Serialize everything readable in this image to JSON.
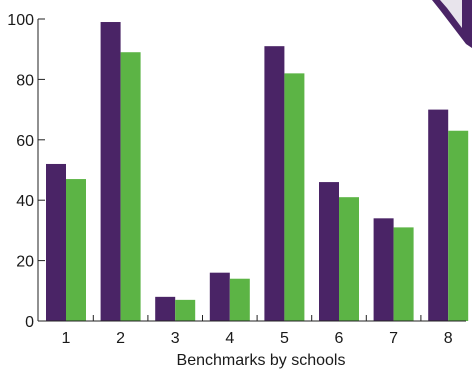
{
  "chart_data": {
    "type": "bar",
    "xlabel": "Benchmarks by schools",
    "ylabel": "",
    "ylim": [
      0,
      100
    ],
    "yticks": [
      0,
      20,
      40,
      60,
      80,
      100
    ],
    "categories": [
      "1",
      "2",
      "3",
      "4",
      "5",
      "6",
      "7",
      "8"
    ],
    "series": [
      {
        "values": [
          52,
          99,
          8,
          16,
          91,
          46,
          34,
          70
        ],
        "color": "#4a2466"
      },
      {
        "values": [
          47,
          89,
          7,
          14,
          82,
          41,
          31,
          63
        ],
        "color": "#5cb445"
      }
    ],
    "grid": false,
    "legend": "none"
  },
  "colors": {
    "axis": "#222222",
    "corner_decoration": "#4a2466",
    "corner_decoration_highlight": "#e8e4ec"
  }
}
